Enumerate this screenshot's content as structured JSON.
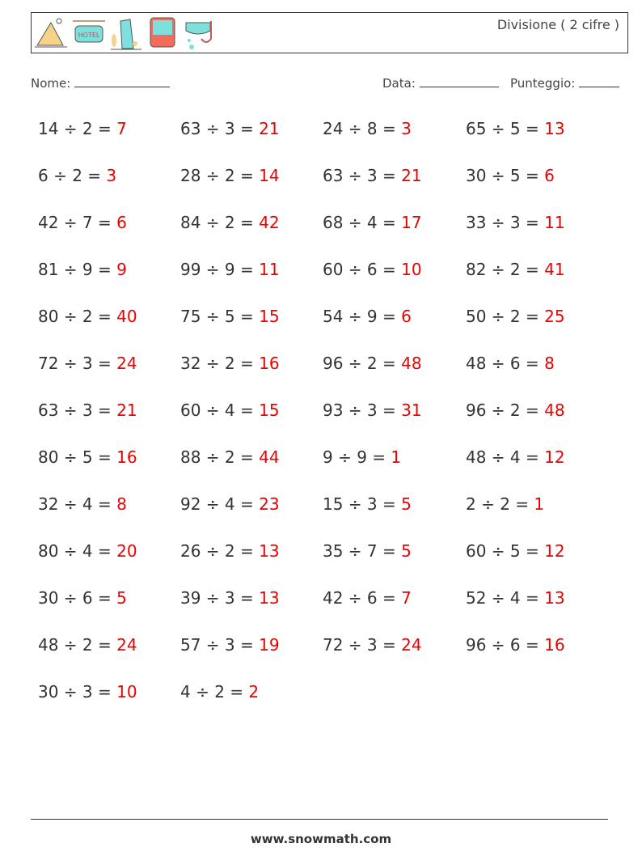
{
  "header": {
    "title": "Divisione ( 2 cifre )",
    "icons": [
      "pyramid-icon",
      "hotel-sign-icon",
      "leaning-tower-icon",
      "bus-icon",
      "snorkel-mask-icon"
    ]
  },
  "fields": {
    "name_label": "Nome:",
    "date_label": "Data:",
    "score_label": "Punteggio:"
  },
  "columns": [
    [
      [
        "14 ÷ 2 = ",
        "7"
      ],
      [
        "6 ÷ 2 = ",
        "3"
      ],
      [
        "42 ÷ 7 = ",
        "6"
      ],
      [
        "81 ÷ 9 = ",
        "9"
      ],
      [
        "80 ÷ 2 = ",
        "40"
      ],
      [
        "72 ÷ 3 = ",
        "24"
      ],
      [
        "63 ÷ 3 = ",
        "21"
      ],
      [
        "80 ÷ 5 = ",
        "16"
      ],
      [
        "32 ÷ 4 = ",
        "8"
      ],
      [
        "80 ÷ 4 = ",
        "20"
      ],
      [
        "30 ÷ 6 = ",
        "5"
      ],
      [
        "48 ÷ 2 = ",
        "24"
      ],
      [
        "30 ÷ 3 = ",
        "10"
      ]
    ],
    [
      [
        "63 ÷ 3 = ",
        "21"
      ],
      [
        "28 ÷ 2 = ",
        "14"
      ],
      [
        "84 ÷ 2 = ",
        "42"
      ],
      [
        "99 ÷ 9 = ",
        "11"
      ],
      [
        "75 ÷ 5 = ",
        "15"
      ],
      [
        "32 ÷ 2 = ",
        "16"
      ],
      [
        "60 ÷ 4 = ",
        "15"
      ],
      [
        "88 ÷ 2 = ",
        "44"
      ],
      [
        "92 ÷ 4 = ",
        "23"
      ],
      [
        "26 ÷ 2 = ",
        "13"
      ],
      [
        "39 ÷ 3 = ",
        "13"
      ],
      [
        "57 ÷ 3 = ",
        "19"
      ],
      [
        "4 ÷ 2 = ",
        "2"
      ]
    ],
    [
      [
        "24 ÷ 8 = ",
        "3"
      ],
      [
        "63 ÷ 3 = ",
        "21"
      ],
      [
        "68 ÷ 4 = ",
        "17"
      ],
      [
        "60 ÷ 6 = ",
        "10"
      ],
      [
        "54 ÷ 9 = ",
        "6"
      ],
      [
        "96 ÷ 2 = ",
        "48"
      ],
      [
        "93 ÷ 3 = ",
        "31"
      ],
      [
        "9 ÷ 9 = ",
        "1"
      ],
      [
        "15 ÷ 3 = ",
        "5"
      ],
      [
        "35 ÷ 7 = ",
        "5"
      ],
      [
        "42 ÷ 6 = ",
        "7"
      ],
      [
        "72 ÷ 3 = ",
        "24"
      ]
    ],
    [
      [
        "65 ÷ 5 = ",
        "13"
      ],
      [
        "30 ÷ 5 = ",
        "6"
      ],
      [
        "33 ÷ 3 = ",
        "11"
      ],
      [
        "82 ÷ 2 = ",
        "41"
      ],
      [
        "50 ÷ 2 = ",
        "25"
      ],
      [
        "48 ÷ 6 = ",
        "8"
      ],
      [
        "96 ÷ 2 = ",
        "48"
      ],
      [
        "48 ÷ 4 = ",
        "12"
      ],
      [
        "2 ÷ 2 = ",
        "1"
      ],
      [
        "60 ÷ 5 = ",
        "12"
      ],
      [
        "52 ÷ 4 = ",
        "13"
      ],
      [
        "96 ÷ 6 = ",
        "16"
      ]
    ]
  ],
  "footer": {
    "url": "www.snowmath.com"
  }
}
